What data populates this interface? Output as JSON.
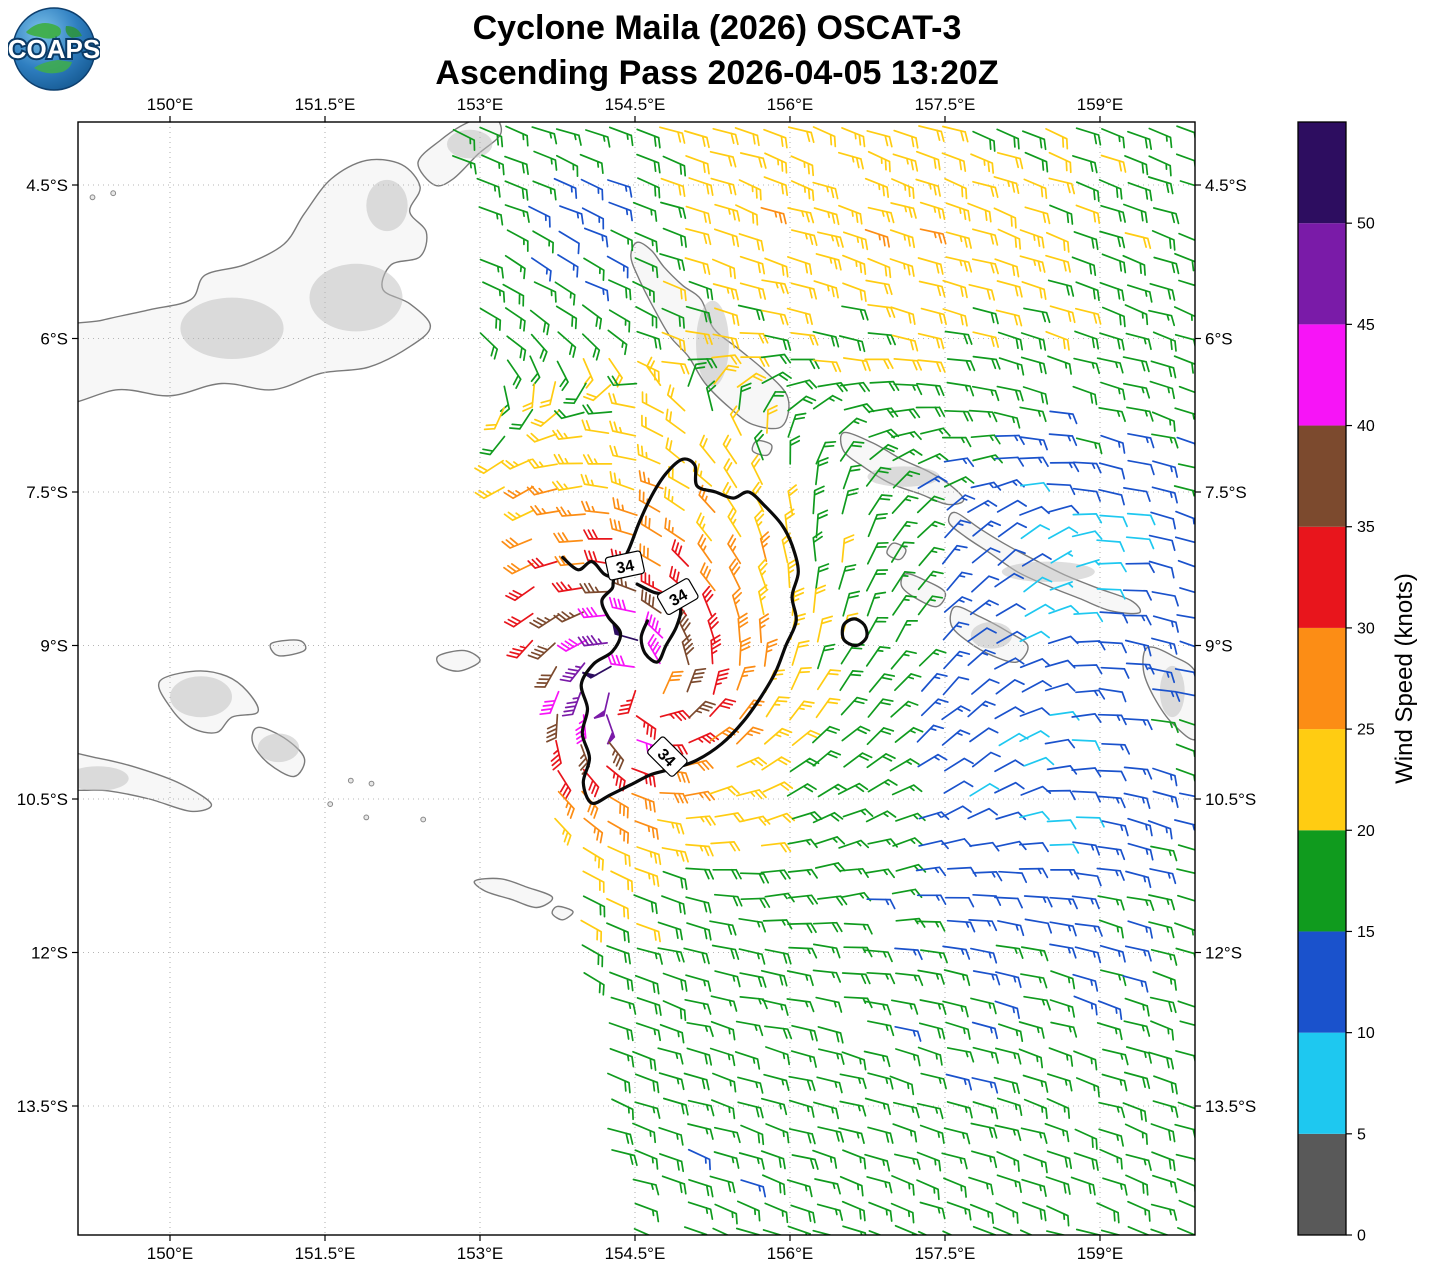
{
  "title": {
    "line1": "Cyclone Maila (2026) OSCAT-3",
    "line2": "Ascending Pass 2026-04-05 13:20Z"
  },
  "logo": {
    "text": "COAPS"
  },
  "map": {
    "lon_ticks": [
      {
        "value": 150,
        "label": "150°E"
      },
      {
        "value": 151.5,
        "label": "151.5°E"
      },
      {
        "value": 153,
        "label": "153°E"
      },
      {
        "value": 154.5,
        "label": "154.5°E"
      },
      {
        "value": 156,
        "label": "156°E"
      },
      {
        "value": 157.5,
        "label": "157.5°E"
      },
      {
        "value": 159,
        "label": "159°E"
      }
    ],
    "lat_ticks": [
      {
        "value": 4.5,
        "label": "4.5°S"
      },
      {
        "value": 6,
        "label": "6°S"
      },
      {
        "value": 7.5,
        "label": "7.5°S"
      },
      {
        "value": 9,
        "label": "9°S"
      },
      {
        "value": 10.5,
        "label": "10.5°S"
      },
      {
        "value": 12,
        "label": "12°S"
      },
      {
        "value": 13.5,
        "label": "13.5°S"
      }
    ],
    "contour": {
      "label": "34",
      "value_kt": 34
    }
  },
  "colorbar": {
    "title": "Wind Speed (knots)",
    "ticks": [
      0,
      5,
      10,
      15,
      20,
      25,
      30,
      35,
      40,
      45,
      50
    ],
    "range": [
      0,
      55
    ],
    "bins": [
      {
        "from": 0,
        "to": 5,
        "color": "#595959"
      },
      {
        "from": 5,
        "to": 10,
        "color": "#1EC8F0"
      },
      {
        "from": 10,
        "to": 15,
        "color": "#1A52CC"
      },
      {
        "from": 15,
        "to": 20,
        "color": "#109B1E"
      },
      {
        "from": 20,
        "to": 25,
        "color": "#FFCC12"
      },
      {
        "from": 25,
        "to": 30,
        "color": "#FC8D15"
      },
      {
        "from": 30,
        "to": 35,
        "color": "#E8151C"
      },
      {
        "from": 35,
        "to": 40,
        "color": "#7C4A2E"
      },
      {
        "from": 40,
        "to": 45,
        "color": "#F714F7"
      },
      {
        "from": 45,
        "to": 50,
        "color": "#7A1BA8"
      },
      {
        "from": 50,
        "to": 55,
        "color": "#2D0D60"
      }
    ]
  },
  "wind_field": {
    "type": "wind-barbs",
    "units": "knots",
    "center_lon_e": 154.55,
    "center_lat_s": 9.45,
    "estimated_peak_wind_kt": 50,
    "gale_contour_kt": 34,
    "barb_grid_spacing_deg": 0.25,
    "swath_west_edge": {
      "lon_at_4s": 152.7,
      "lon_at_14s": 154.35
    }
  }
}
